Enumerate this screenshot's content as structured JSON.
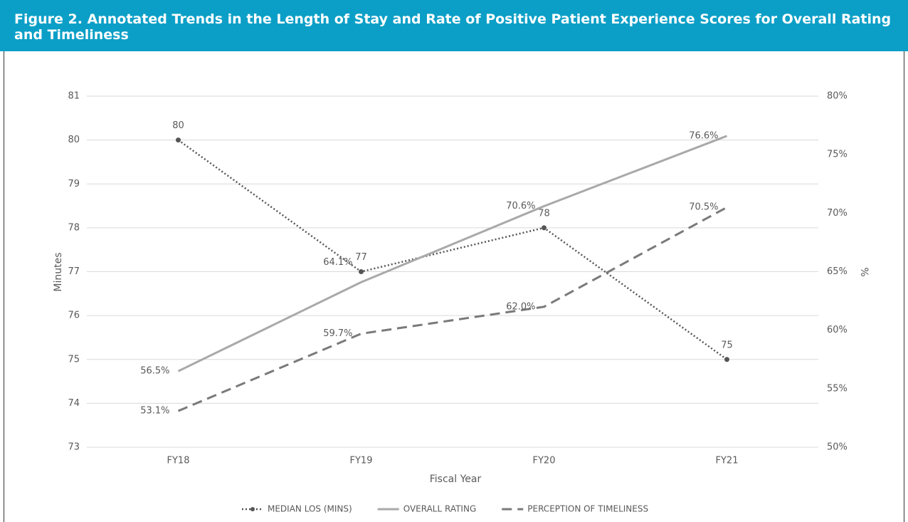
{
  "chart_data": {
    "type": "line",
    "title": "Figure 2. Annotated Trends in the Length of Stay and Rate of Positive Patient Experience Scores for Overall Rating and Timeliness",
    "x_label": "Fiscal Year",
    "y_label": "Minutes",
    "y2_label": "%",
    "categories": [
      "FY18",
      "FY19",
      "FY20",
      "FY21"
    ],
    "ylim": [
      73,
      81
    ],
    "yticks": [
      73,
      74,
      75,
      76,
      77,
      78,
      79,
      80,
      81
    ],
    "y2lim": [
      50,
      80
    ],
    "y2ticks": [
      {
        "value": 50,
        "label": "50%"
      },
      {
        "value": 55,
        "label": "55%"
      },
      {
        "value": 60,
        "label": "60%"
      },
      {
        "value": 65,
        "label": "65%"
      },
      {
        "value": 70,
        "label": "70%"
      },
      {
        "value": 75,
        "label": "75%"
      },
      {
        "value": 80,
        "label": "80%"
      }
    ],
    "grid": true,
    "legend": "bottom",
    "series": [
      {
        "name": "MEDIAN LOS (MINS)",
        "color": "#555555",
        "style": "dotted",
        "marker": true,
        "values": [
          80,
          77,
          78,
          75
        ]
      },
      {
        "name": "OVERALL RATING",
        "color": "#a9a9a9",
        "style": "solid",
        "axis": "y2",
        "values": [
          56.5,
          64.1,
          70.6,
          76.6
        ],
        "value_labels": [
          "56.5%",
          "64.1%",
          "70.6%",
          "76.6%"
        ]
      },
      {
        "name": "PERCEPTION OF TIMELINESS",
        "color": "#7a7a7a",
        "style": "dashed",
        "axis": "y2",
        "values": [
          53.1,
          59.7,
          62.0,
          70.5
        ],
        "value_labels": [
          "53.1%",
          "59.7%",
          "62.0%",
          "70.5%"
        ]
      }
    ]
  }
}
